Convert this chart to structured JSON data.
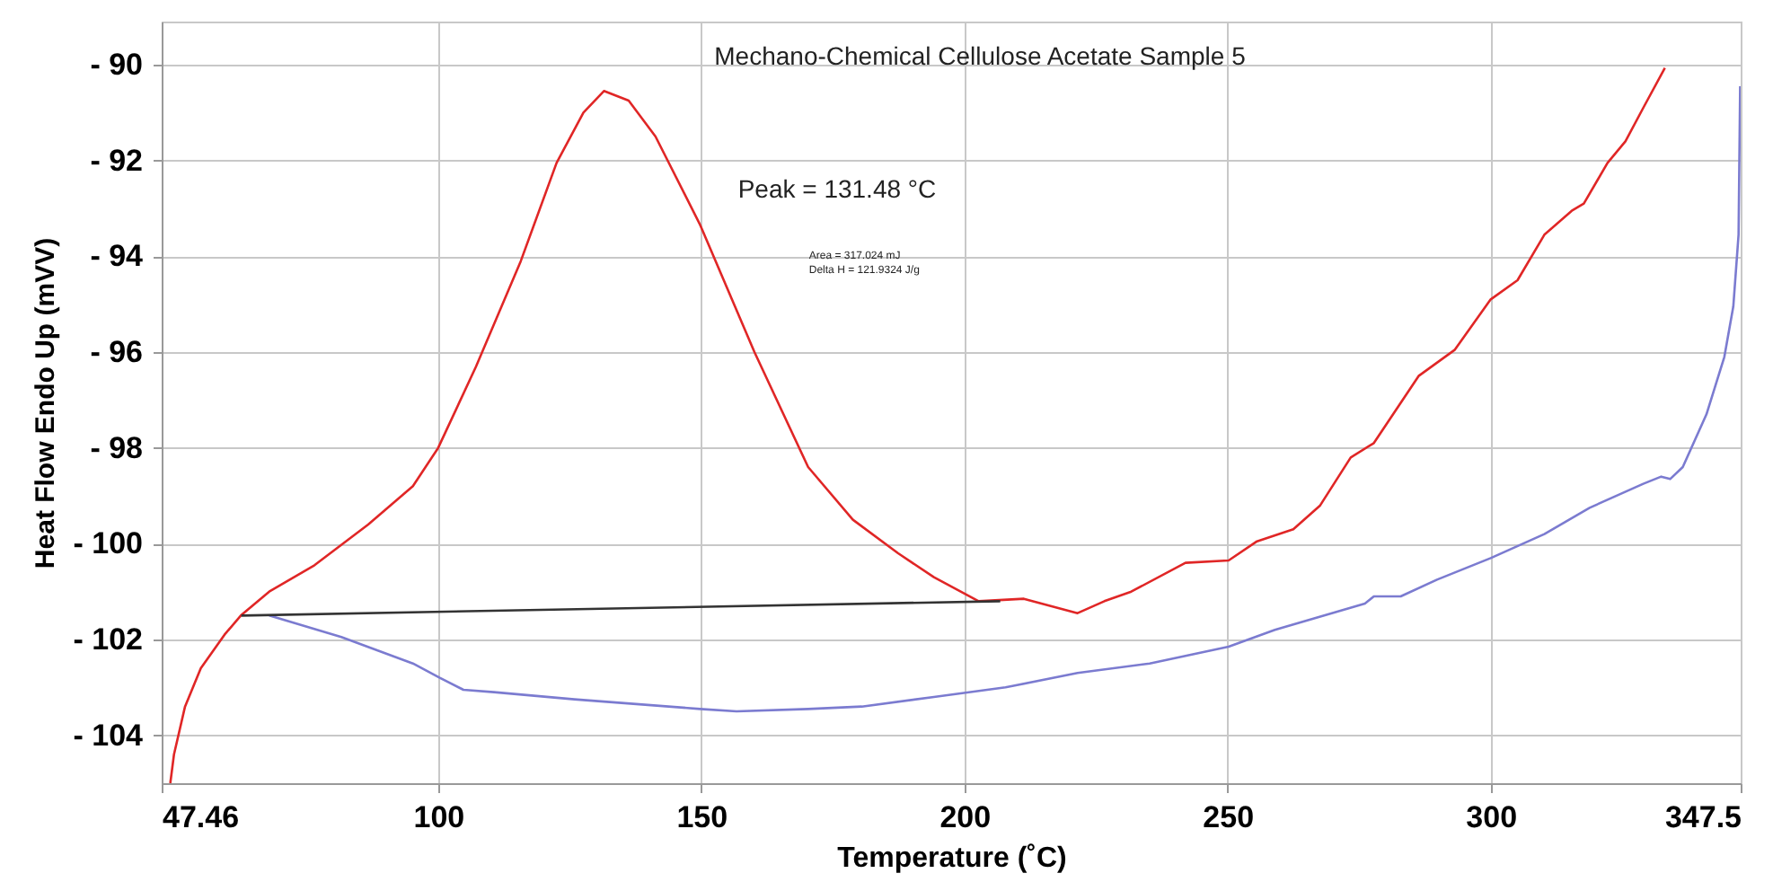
{
  "chart_data": {
    "type": "line",
    "title": "Mechano-Chemical Cellulose Acetate Sample 5",
    "xlabel": "Temperature (˚C)",
    "ylabel": "Heat Flow Endo Up (mVV)",
    "annotations": [
      "Peak = 131.48 °C",
      "Area = 317.024 mJ",
      "Delta H = 121.9324 J/g"
    ],
    "xlim": [
      47.46,
      347.5
    ],
    "xticks": [
      47.46,
      100,
      150,
      200,
      250,
      300,
      347.5
    ],
    "ylim": [
      -105,
      -89.1
    ],
    "yticks": [
      {
        "value": -90,
        "label": "- 90"
      },
      {
        "value": -92,
        "label": "- 92"
      },
      {
        "value": -94,
        "label": "- 94"
      },
      {
        "value": -96,
        "label": "- 96"
      },
      {
        "value": -98,
        "label": "- 98"
      },
      {
        "value": -100,
        "label": "- 100"
      },
      {
        "value": -102,
        "label": "- 102"
      },
      {
        "value": -104,
        "label": "- 104"
      }
    ],
    "grid": true,
    "line_style": "solid",
    "series": [
      {
        "color": "#e02626",
        "x": [
          49.1,
          49.8,
          51.9,
          54.9,
          59.4,
          62.5,
          67.9,
          76.5,
          86.7,
          95.2,
          100,
          107.2,
          115.7,
          122.5,
          127.6,
          131.5,
          136.2,
          141.3,
          149.8,
          160.1,
          170.3,
          178.8,
          187.4,
          194.2,
          202.7,
          211.3,
          216.4,
          221.5,
          226.6,
          231.7,
          242,
          250.2,
          255.6,
          262.5,
          267.6,
          273.4,
          277.8,
          286.3,
          293.2,
          300,
          305.1,
          310.2,
          315.4,
          317.7,
          322.2,
          325.6,
          329,
          333.1
        ],
        "values": [
          -105,
          -104.4,
          -103.4,
          -102.6,
          -101.9,
          -101.5,
          -101,
          -100.45,
          -99.6,
          -98.8,
          -98,
          -96.3,
          -94.1,
          -92.05,
          -91,
          -90.55,
          -90.75,
          -91.5,
          -93.35,
          -96,
          -98.4,
          -99.5,
          -100.2,
          -100.7,
          -101.2,
          -101.15,
          -101.3,
          -101.45,
          -101.2,
          -101,
          -100.4,
          -100.35,
          -99.95,
          -99.7,
          -99.2,
          -98.2,
          -97.9,
          -96.5,
          -95.95,
          -94.9,
          -94.5,
          -93.55,
          -93.05,
          -92.9,
          -92.05,
          -91.6,
          -90.9,
          -90.07
        ]
      },
      {
        "color": "#7b7bd0",
        "x": [
          67.9,
          81.6,
          95.2,
          100.3,
          104.8,
          110.6,
          125.9,
          149.8,
          156.7,
          170.3,
          180.5,
          194.2,
          207.8,
          221.5,
          235.2,
          250.2,
          259,
          276.1,
          277.8,
          282.9,
          289.8,
          300,
          310.2,
          318.8,
          329,
          332.4,
          334.1,
          336.5,
          341,
          344.4,
          346.1,
          347.1,
          347.4
        ],
        "values": [
          -101.5,
          -101.95,
          -102.5,
          -102.8,
          -103.05,
          -103.1,
          -103.25,
          -103.45,
          -103.5,
          -103.45,
          -103.4,
          -103.2,
          -103,
          -102.7,
          -102.5,
          -102.15,
          -101.8,
          -101.25,
          -101.1,
          -101.1,
          -100.75,
          -100.3,
          -99.8,
          -99.25,
          -98.75,
          -98.6,
          -98.65,
          -98.4,
          -97.3,
          -96.1,
          -95.05,
          -93.55,
          -90.45
        ]
      },
      {
        "color": "#333333",
        "x": [
          62.6,
          206.8
        ],
        "values": [
          -101.5,
          -101.2
        ]
      }
    ]
  }
}
